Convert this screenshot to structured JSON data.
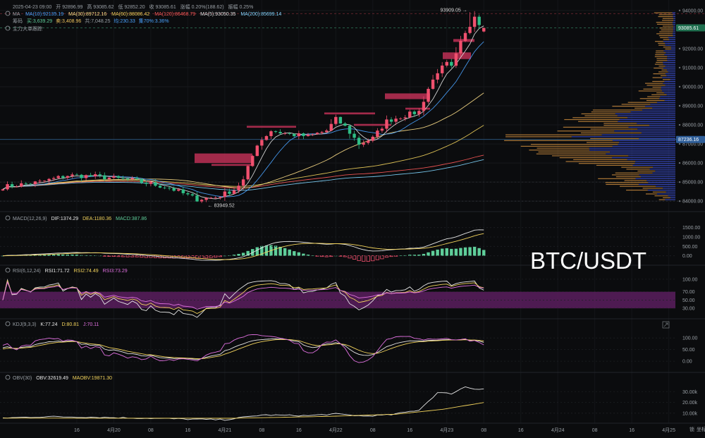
{
  "chart_data": {
    "type": "candlestick",
    "symbol_watermark": "BTC/USDT",
    "timeframe_note": "hourly",
    "header": {
      "datetime": "2025-04-23 09:00",
      "open_label": "开",
      "open": "92896.99",
      "high_label": "高",
      "high": "93085.62",
      "low_label": "低",
      "low": "92852.20",
      "close_label": "收",
      "close": "93085.61",
      "change_label": "涨幅",
      "change": "0.20%(188.62)",
      "amp_label": "振幅",
      "amp": "0.25%"
    },
    "ma_legend": {
      "label": "MA",
      "items": [
        {
          "text": "MA(10):92135.19",
          "color": "#4aa3ff"
        },
        {
          "text": "MA(30):89712.16",
          "color": "#ffe08a"
        },
        {
          "text": "MA(60):88086.42",
          "color": "#f2d35c"
        },
        {
          "text": "MA(120):86468.79",
          "color": "#ff5a5a"
        },
        {
          "text": "MA(5):93050.35",
          "color": "#e6e6e6"
        },
        {
          "text": "MA(200):85699.14",
          "color": "#7fd6ff"
        }
      ]
    },
    "chip_legend": {
      "label": "筹码",
      "buy": "买:3,639.29",
      "sell": "卖:3,408.96",
      "total": "共:7,048.25",
      "avg": "均:230.33",
      "pct": "集70%:3.36%"
    },
    "main_force_label": "主力大单跟踪",
    "price_axis": {
      "min": 83600,
      "max": 94400,
      "ticks": [
        {
          "v": 94000,
          "label": "94000.00"
        },
        {
          "v": 92000,
          "label": "92000.00"
        },
        {
          "v": 91000,
          "label": "91000.00"
        },
        {
          "v": 90000,
          "label": "90000.00"
        },
        {
          "v": 89000,
          "label": "89000.00"
        },
        {
          "v": 88000,
          "label": "88000.00"
        },
        {
          "v": 87000,
          "label": "87000.00"
        },
        {
          "v": 86000,
          "label": "86000.00"
        },
        {
          "v": 85000,
          "label": "85000.00"
        },
        {
          "v": 84000,
          "label": "84000.00"
        }
      ],
      "current": {
        "v": 93085.61,
        "label": "93085.61"
      },
      "crosshair": {
        "v": 87236.16,
        "label": "87236.16"
      }
    },
    "annotations": {
      "high": {
        "v": 93909.05,
        "label": "93909.05 →"
      },
      "low": {
        "v": 83949.52,
        "label": "← 83949.52"
      }
    },
    "time_axis": {
      "labels": [
        {
          "label": "16",
          "hour": 16
        },
        {
          "label": "4月20",
          "hour": 24
        },
        {
          "label": "08",
          "hour": 32
        },
        {
          "label": "16",
          "hour": 40
        },
        {
          "label": "4月21",
          "hour": 48
        },
        {
          "label": "08",
          "hour": 56
        },
        {
          "label": "16",
          "hour": 64
        },
        {
          "label": "4月22",
          "hour": 72
        },
        {
          "label": "08",
          "hour": 80
        },
        {
          "label": "16",
          "hour": 88
        },
        {
          "label": "4月23",
          "hour": 96
        },
        {
          "label": "08",
          "hour": 104
        },
        {
          "label": "16",
          "hour": 112
        },
        {
          "label": "4月24",
          "hour": 120
        },
        {
          "label": "08",
          "hour": 128
        },
        {
          "label": "16",
          "hour": 136
        },
        {
          "label": "4月25",
          "hour": 144
        }
      ]
    },
    "close_anchors": [
      [
        0,
        84750
      ],
      [
        8,
        85000
      ],
      [
        14,
        85350
      ],
      [
        20,
        85300
      ],
      [
        28,
        85100
      ],
      [
        36,
        84700
      ],
      [
        42,
        84100
      ],
      [
        46,
        84200
      ],
      [
        50,
        84600
      ],
      [
        52,
        85100
      ],
      [
        55,
        87000
      ],
      [
        58,
        87700
      ],
      [
        62,
        87500
      ],
      [
        66,
        87400
      ],
      [
        70,
        87700
      ],
      [
        72,
        88300
      ],
      [
        74,
        87900
      ],
      [
        77,
        87000
      ],
      [
        80,
        87300
      ],
      [
        83,
        88200
      ],
      [
        87,
        88500
      ],
      [
        90,
        88700
      ],
      [
        92,
        89900
      ],
      [
        94,
        90800
      ],
      [
        96,
        91200
      ],
      [
        97,
        91000
      ],
      [
        99,
        92300
      ],
      [
        101,
        93200
      ],
      [
        102,
        93800
      ],
      [
        103,
        93300
      ],
      [
        104,
        93085
      ]
    ],
    "macd": {
      "label": "MACD(12,26,9)",
      "dif": "DIF:1374.29",
      "dea": "DEA:1180.36",
      "macd": "MACD:387.86",
      "ticks": [
        "1500.00",
        "1000.00",
        "500.00",
        "0.00"
      ],
      "tick_values": [
        1500,
        1000,
        500,
        0
      ],
      "min": -350,
      "max": 1750
    },
    "rsi": {
      "label": "RSI(6,12,24)",
      "rsi1": "RSI1:71.72",
      "rsi2": "RSI2:74.49",
      "rsi3": "RSI3:73.29",
      "ticks": [
        "100.00",
        "70.00",
        "50.00",
        "30.00"
      ],
      "tick_values": [
        100,
        70,
        50,
        30
      ],
      "min": 15,
      "max": 110
    },
    "kdj": {
      "label": "KDJ(9,3,3)",
      "k": "K:77.24",
      "d": "D:80.81",
      "j": "J:70.11",
      "ticks": [
        "100.00",
        "50.00",
        "0.00"
      ],
      "tick_values": [
        100,
        50,
        0
      ],
      "min": -30,
      "max": 140
    },
    "obv": {
      "label": "OBV(30)",
      "obv": "OBV:32619.49",
      "maobv": "MAOBV:19871.30",
      "ticks": [
        "30.00k",
        "20.00k",
        "10.00k"
      ],
      "tick_values": [
        30000,
        20000,
        10000
      ],
      "min": 2000,
      "max": 40000,
      "anchors": [
        [
          0,
          5500
        ],
        [
          10,
          6800
        ],
        [
          20,
          6200
        ],
        [
          30,
          5400
        ],
        [
          40,
          4500
        ],
        [
          48,
          3900
        ],
        [
          56,
          8300
        ],
        [
          66,
          7700
        ],
        [
          72,
          9300
        ],
        [
          78,
          7200
        ],
        [
          84,
          8600
        ],
        [
          90,
          13000
        ],
        [
          94,
          29000
        ],
        [
          97,
          28200
        ],
        [
          100,
          34500
        ],
        [
          102,
          32500
        ],
        [
          104,
          32619
        ]
      ],
      "ma_anchors": [
        [
          0,
          5400
        ],
        [
          50,
          5300
        ],
        [
          70,
          7000
        ],
        [
          85,
          9000
        ],
        [
          95,
          13500
        ],
        [
          104,
          19871
        ]
      ]
    },
    "colors": {
      "up": "#f0506e",
      "down": "#2ebd85",
      "macd_pos": "#5fce9a",
      "macd_neg": "#f0506e",
      "chip_blue": "#3c4fcf",
      "chip_orange": "#c88a3c",
      "rsi_band": "#5a1f5e"
    }
  },
  "ui": {
    "lock_label": "锁",
    "scale_label": "坐标"
  }
}
